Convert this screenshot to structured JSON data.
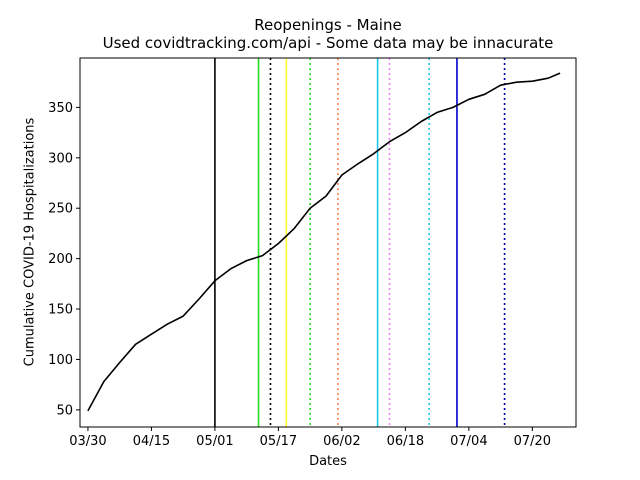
{
  "chart_data": {
    "type": "line",
    "title": "Reopenings - Maine",
    "subtitle": "Used covidtracking.com/api - Some data may be innacurate",
    "xlabel": "Dates",
    "ylabel": "Cumulative COVID-19 Hospitalizations",
    "xlim": [
      "2020-03-28",
      "2020-07-31"
    ],
    "ylim": [
      33,
      399
    ],
    "x_ticks": [
      "03/30",
      "04/15",
      "05/01",
      "05/17",
      "06/02",
      "06/18",
      "07/04",
      "07/20"
    ],
    "y_ticks": [
      50,
      100,
      150,
      200,
      250,
      300,
      350
    ],
    "grid": false,
    "series": [
      {
        "color": "#000000",
        "x": [
          "2020-03-30",
          "2020-04-03",
          "2020-04-07",
          "2020-04-11",
          "2020-04-15",
          "2020-04-19",
          "2020-04-23",
          "2020-04-27",
          "2020-05-01",
          "2020-05-05",
          "2020-05-09",
          "2020-05-13",
          "2020-05-17",
          "2020-05-21",
          "2020-05-25",
          "2020-05-29",
          "2020-06-02",
          "2020-06-06",
          "2020-06-10",
          "2020-06-14",
          "2020-06-18",
          "2020-06-22",
          "2020-06-26",
          "2020-06-30",
          "2020-07-04",
          "2020-07-08",
          "2020-07-12",
          "2020-07-16",
          "2020-07-20",
          "2020-07-24",
          "2020-07-27"
        ],
        "y": [
          49,
          78,
          97,
          115,
          125,
          135,
          143,
          160,
          178,
          190,
          198,
          203,
          215,
          230,
          250,
          262,
          283,
          294,
          304,
          316,
          325,
          336,
          345,
          350,
          358,
          363,
          372,
          375,
          376,
          379,
          384
        ]
      }
    ],
    "vlines": [
      {
        "x": "2020-05-01",
        "color": "#000000",
        "style": "solid"
      },
      {
        "x": "2020-05-12",
        "color": "#22dd22",
        "style": "solid"
      },
      {
        "x": "2020-05-15",
        "color": "#000000",
        "style": "dotted"
      },
      {
        "x": "2020-05-19",
        "color": "#ffff33",
        "style": "solid"
      },
      {
        "x": "2020-05-25",
        "color": "#22dd22",
        "style": "dotted"
      },
      {
        "x": "2020-06-01",
        "color": "#ff7f50",
        "style": "dotted"
      },
      {
        "x": "2020-06-11",
        "color": "#1ec8e8",
        "style": "solid"
      },
      {
        "x": "2020-06-14",
        "color": "#ee82ee",
        "style": "dotted"
      },
      {
        "x": "2020-06-24",
        "color": "#1ec8e8",
        "style": "dotted"
      },
      {
        "x": "2020-07-01",
        "color": "#0000cc",
        "style": "solid"
      },
      {
        "x": "2020-07-13",
        "color": "#0000aa",
        "style": "dotted"
      }
    ]
  }
}
